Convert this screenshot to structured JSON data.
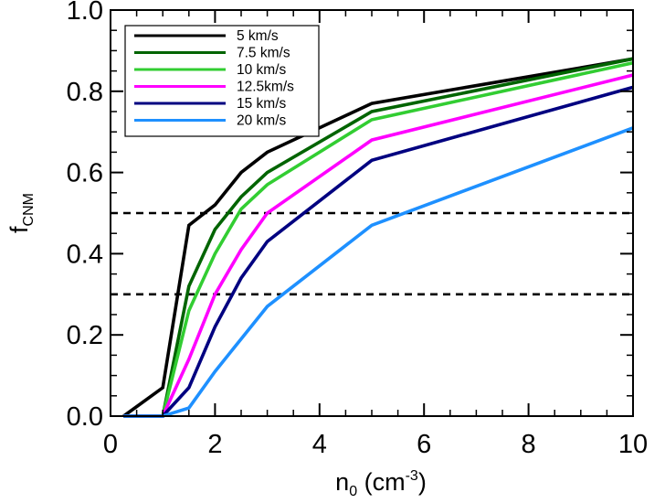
{
  "chart_data": {
    "type": "line",
    "xlabel": {
      "base": "n",
      "sub": "0",
      "unit_open": " (cm",
      "sup": "-3",
      "unit_close": ")"
    },
    "ylabel": {
      "base": "f",
      "sub": "CNM"
    },
    "xlim": [
      0,
      10
    ],
    "ylim": [
      0,
      1.0
    ],
    "x_ticks": [
      0,
      2,
      4,
      6,
      8,
      10
    ],
    "x_tick_labels": [
      "0",
      "2",
      "4",
      "6",
      "8",
      "10"
    ],
    "y_ticks": [
      0.0,
      0.2,
      0.4,
      0.6,
      0.8,
      1.0
    ],
    "y_tick_labels": [
      "0.0",
      "0.2",
      "0.4",
      "0.6",
      "0.8",
      "1.0"
    ],
    "legend_position": "top-left",
    "x": [
      0.25,
      1.0,
      1.5,
      2.0,
      2.5,
      3.0,
      5.0,
      10.0
    ],
    "series": [
      {
        "name": "5 km/s",
        "color": "#000000",
        "values": [
          0.0,
          0.07,
          0.47,
          0.52,
          0.6,
          0.65,
          0.77,
          0.88
        ]
      },
      {
        "name": "7.5 km/s",
        "color": "#006400",
        "values": [
          0.0,
          0.0,
          0.32,
          0.46,
          0.54,
          0.6,
          0.75,
          0.88
        ]
      },
      {
        "name": "10 km/s",
        "color": "#32CD32",
        "values": [
          0.0,
          0.0,
          0.26,
          0.4,
          0.51,
          0.57,
          0.73,
          0.87
        ]
      },
      {
        "name": "12.5km/s",
        "color": "#FF00FF",
        "values": [
          0.0,
          0.0,
          0.14,
          0.3,
          0.41,
          0.5,
          0.68,
          0.84
        ]
      },
      {
        "name": "15 km/s",
        "color": "#000080",
        "values": [
          0.0,
          0.0,
          0.07,
          0.22,
          0.34,
          0.43,
          0.63,
          0.81
        ]
      },
      {
        "name": "20 km/s",
        "color": "#1E90FF",
        "values": [
          0.0,
          0.0,
          0.02,
          0.11,
          0.19,
          0.27,
          0.47,
          0.71
        ]
      }
    ],
    "reference_lines": [
      0.5,
      0.3
    ],
    "reference_style": "black dashed"
  }
}
